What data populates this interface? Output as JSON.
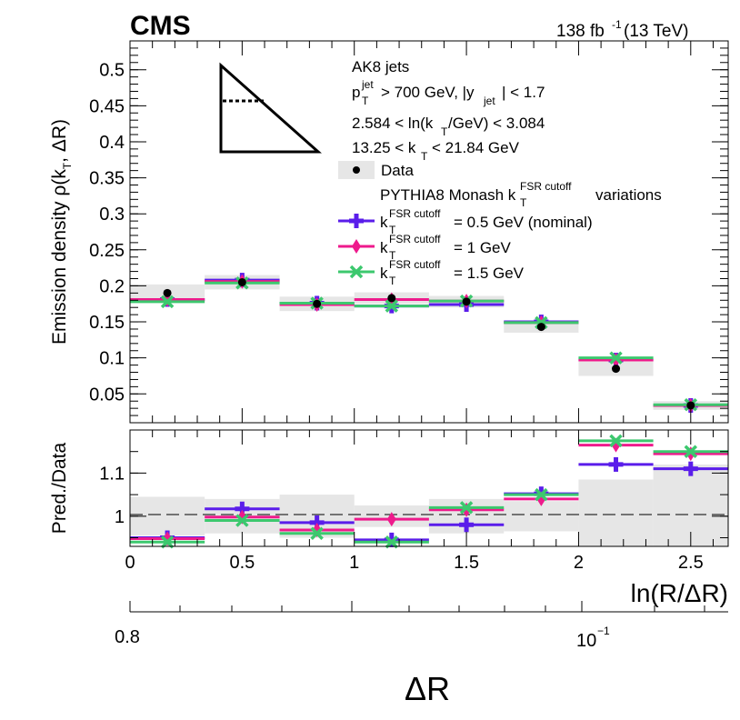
{
  "header": {
    "experiment": "CMS",
    "lumi_value": "138 fb",
    "lumi_exp": "-1",
    "lumi_energy": "(13 TeV)"
  },
  "info": {
    "line1": "AK8 jets",
    "line2_p": "p",
    "line2_p_sup": "jet",
    "line2_p_sub": "T",
    "line2_rest": "> 700 GeV, |y",
    "line2_y_sub": "jet",
    "line2_end": "| < 1.7",
    "line3_a": "2.584 < ln(k",
    "line3_sub": "T",
    "line3_b": "/GeV) < 3.084",
    "line4_a": "13.25 < k",
    "line4_sub": "T",
    "line4_b": "< 21.84 GeV"
  },
  "legend": {
    "data_label": "Data",
    "group_a": "PYTHIA8 Monash k",
    "group_sup": "FSR cutoff",
    "group_sub": "T",
    "group_b": "variations",
    "entries": [
      {
        "k": "k",
        "sup": "FSR cutoff",
        "sub": "T",
        "rest": "= 0.5 GeV (nominal)"
      },
      {
        "k": "k",
        "sup": "FSR cutoff",
        "sub": "T",
        "rest": "= 1 GeV"
      },
      {
        "k": "k",
        "sup": "FSR cutoff",
        "sub": "T",
        "rest": "= 1.5 GeV"
      }
    ]
  },
  "axes": {
    "ylabel_main": "Emission density ρ(k",
    "ylabel_sub": "T",
    "ylabel_end": ", ΔR)",
    "ylabel_ratio": "Pred./Data",
    "xlabel": "ln(R/ΔR)",
    "xlabel2": "ΔR",
    "x2_tick_08": "0.8",
    "x2_tick_01": "10",
    "x2_tick_01_exp": "−1"
  },
  "colors": {
    "data": "#000000",
    "band": "#e6e6e6",
    "nominal": "#5a1dea",
    "cutoff1": "#ee1a8c",
    "cutoff15": "#3cc86e"
  },
  "chart_data": [
    {
      "type": "scatter",
      "panel": "main",
      "bin_edges": [
        0,
        0.333,
        0.667,
        1.0,
        1.333,
        1.667,
        2.0,
        2.333,
        2.667
      ],
      "xlim": [
        0,
        2.667
      ],
      "ylim": [
        0.01,
        0.54
      ],
      "yticks": [
        "0.05",
        "0.1",
        "0.15",
        "0.2",
        "0.25",
        "0.3",
        "0.35",
        "0.4",
        "0.45",
        "0.5"
      ],
      "xticks": [
        "0",
        "0.5",
        "1",
        "1.5",
        "2",
        "2.5"
      ],
      "data": {
        "values": [
          0.19,
          0.205,
          0.175,
          0.183,
          0.178,
          0.143,
          0.085,
          0.034
        ],
        "band": [
          0.012,
          0.01,
          0.01,
          0.008,
          0.008,
          0.008,
          0.01,
          0.006
        ]
      },
      "series": [
        {
          "name": "= 0.5 GeV (nominal)",
          "values": [
            0.181,
            0.208,
            0.176,
            0.172,
            0.174,
            0.15,
            0.097,
            0.034
          ]
        },
        {
          "name": "= 1 GeV",
          "values": [
            0.181,
            0.206,
            0.174,
            0.181,
            0.179,
            0.149,
            0.097,
            0.034
          ]
        },
        {
          "name": "= 1.5 GeV",
          "values": [
            0.178,
            0.204,
            0.176,
            0.172,
            0.179,
            0.149,
            0.1,
            0.035
          ]
        }
      ]
    },
    {
      "type": "scatter",
      "panel": "ratio",
      "bin_edges": [
        0,
        0.333,
        0.667,
        1.0,
        1.333,
        1.667,
        2.0,
        2.333,
        2.667
      ],
      "xlim": [
        0,
        2.667
      ],
      "ylim": [
        0.93,
        1.2
      ],
      "yticks": [
        "1",
        "1.1"
      ],
      "xticks": [
        "0",
        "0.5",
        "1",
        "1.5",
        "2",
        "2.5"
      ],
      "band": [
        0.045,
        0.04,
        0.05,
        0.025,
        0.04,
        0.035,
        0.085,
        0.12
      ],
      "series": [
        {
          "name": "= 0.5 GeV (nominal)",
          "values": [
            0.95,
            1.017,
            0.985,
            0.945,
            0.98,
            1.052,
            1.12,
            1.11
          ]
        },
        {
          "name": "= 1 GeV",
          "values": [
            0.948,
            0.998,
            0.968,
            0.993,
            1.015,
            1.04,
            1.165,
            1.145
          ]
        },
        {
          "name": "= 1.5 GeV",
          "values": [
            0.94,
            0.99,
            0.96,
            0.94,
            1.02,
            1.05,
            1.175,
            1.15
          ]
        }
      ]
    }
  ]
}
